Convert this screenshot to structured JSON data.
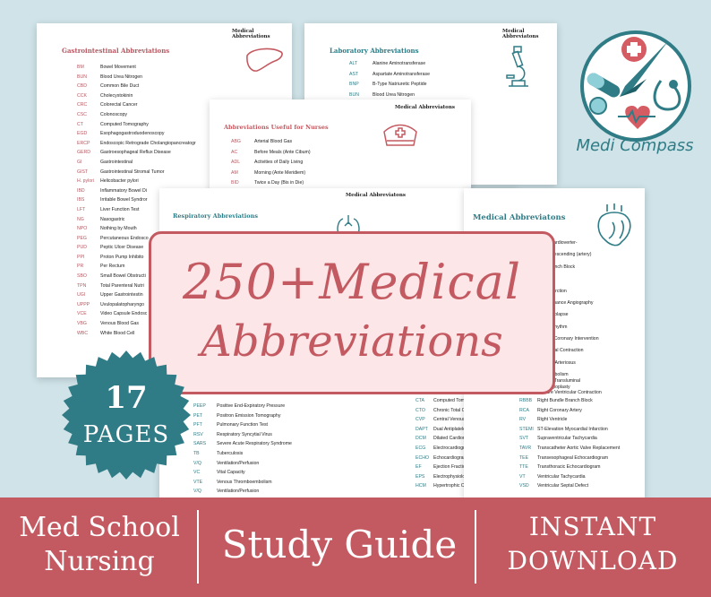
{
  "gi_sheet": {
    "header": "Medical Abbreviations",
    "title": "Gastrointestinal Abbreviations",
    "rows": [
      {
        "ab": "BM",
        "df": "Bowel Movement"
      },
      {
        "ab": "BUN",
        "df": "Blood Urea Nitrogen"
      },
      {
        "ab": "CBD",
        "df": "Common Bile Duct"
      },
      {
        "ab": "CCK",
        "df": "Cholecystokinin"
      },
      {
        "ab": "CRC",
        "df": "Colorectal Cancer"
      },
      {
        "ab": "CSC",
        "df": "Colonoscopy"
      },
      {
        "ab": "CT",
        "df": "Computed Tomography"
      },
      {
        "ab": "EGD",
        "df": "Esophagogastroduodenoscopy"
      },
      {
        "ab": "ERCP",
        "df": "Endoscopic Retrograde Cholangiopancreatogr"
      },
      {
        "ab": "GERD",
        "df": "Gastroesophageal Reflux Disease"
      },
      {
        "ab": "GI",
        "df": "Gastrointestinal"
      },
      {
        "ab": "GIST",
        "df": "Gastrointestinal Stromal Tumor"
      },
      {
        "ab": "H. pylori",
        "df": "Helicobacter pylori"
      },
      {
        "ab": "IBD",
        "df": "Inflammatory Bowel Di"
      },
      {
        "ab": "IBS",
        "df": "Irritable Bowel Syndror"
      },
      {
        "ab": "LFT",
        "df": "Liver Function Test"
      },
      {
        "ab": "NG",
        "df": "Nasogastric"
      },
      {
        "ab": "NPO",
        "df": "Nothing by Mouth"
      },
      {
        "ab": "PEG",
        "df": "Percutaneous Endosco"
      },
      {
        "ab": "PUD",
        "df": "Peptic Ulcer Disease"
      },
      {
        "ab": "PPI",
        "df": "Proton Pump Inhibito"
      },
      {
        "ab": "PR",
        "df": "Per Rectum"
      },
      {
        "ab": "SBO",
        "df": "Small Bowel Obstructi"
      },
      {
        "ab": "TPN",
        "df": "Total Parenteral Nutri"
      },
      {
        "ab": "UGI",
        "df": "Upper Gastrointestin"
      },
      {
        "ab": "UPPP",
        "df": "Uvulopalatopharyngo"
      },
      {
        "ab": "VCE",
        "df": "Video Capsule Endosc"
      },
      {
        "ab": "VBG",
        "df": "Venous Blood Gas"
      },
      {
        "ab": "WBC",
        "df": "White Blood Cell"
      }
    ]
  },
  "lab_sheet": {
    "header": "Medical Abbreviatons",
    "title": "Laboratory Abbreviations",
    "rows": [
      {
        "ab": "ALT",
        "df": "Alanine Aminotransferase"
      },
      {
        "ab": "AST",
        "df": "Aspartate Aminotransferase"
      },
      {
        "ab": "BNP",
        "df": "B-Type Natriuretic Peptide"
      },
      {
        "ab": "BUN",
        "df": "Blood Urea Nitrogen"
      }
    ]
  },
  "nurse_sheet": {
    "header": "Medical Abbreviatons",
    "title": "Abbreviations Useful for Nurses",
    "rows": [
      {
        "ab": "ABG",
        "df": "Arterial Blood Gas"
      },
      {
        "ab": "AC",
        "df": "Before Meals (Ante Cibum)"
      },
      {
        "ab": "ADL",
        "df": "Activities of Daily Living"
      },
      {
        "ab": "AM",
        "df": "Morning (Ante Meridiem)"
      },
      {
        "ab": "BID",
        "df": "Twice a Day (Bis in Die)"
      }
    ]
  },
  "resp_sheet": {
    "header": "Medical Abbreviatons",
    "title": "Respiratory Abbreviations",
    "rows": [
      {
        "ab": "PEEP",
        "df": "Positive End-Expiratory Pressure"
      },
      {
        "ab": "PET",
        "df": "Positron Emission Tomography"
      },
      {
        "ab": "PFT",
        "df": "Pulmonary Function Test"
      },
      {
        "ab": "RSV",
        "df": "Respiratory Syncytial Virus"
      },
      {
        "ab": "SARS",
        "df": "Severe Acute Respiratory Syndrome"
      },
      {
        "ab": "TB",
        "df": "Tuberculosis"
      },
      {
        "ab": "V/Q",
        "df": "Ventilation/Perfusion"
      },
      {
        "ab": "VC",
        "df": "Vital Capacity"
      },
      {
        "ab": "VTE",
        "df": "Venous Thromboembolism"
      },
      {
        "ab": "V/Q",
        "df": "Ventilation/Perfusion"
      }
    ],
    "mid_rows": [
      {
        "ab": "CTA",
        "df": "Computed Tomography Angiography"
      },
      {
        "ab": "CTO",
        "df": "Chronic Total Occlusion"
      },
      {
        "ab": "CVP",
        "df": "Central Venous Pressure"
      },
      {
        "ab": "DAPT",
        "df": "Dual Antiplatelet Therapy"
      },
      {
        "ab": "DCM",
        "df": "Dilated Cardiomyopathy"
      },
      {
        "ab": "ECG",
        "df": "Electrocardiogram"
      },
      {
        "ab": "ECHO",
        "df": "Echocardiogram"
      },
      {
        "ab": "EF",
        "df": "Ejection Fraction"
      },
      {
        "ab": "EPS",
        "df": "Electrophysiological Study"
      },
      {
        "ab": "HCM",
        "df": "Hypertrophic Cardiomyopathy"
      }
    ]
  },
  "cardio_sheet": {
    "title": "Medical Abbreviatons",
    "top_rows": [
      {
        "ab": "",
        "df": "ble Cardioverter-"
      },
      {
        "ab": "",
        "df": "tor"
      },
      {
        "ab": "",
        "df": "rior Descending (artery)"
      },
      {
        "ab": "",
        "df": ""
      },
      {
        "ab": "",
        "df": "le Branch Block"
      },
      {
        "ab": "",
        "df": ""
      },
      {
        "ab": "",
        "df": "ricle"
      },
      {
        "ab": "",
        "df": ""
      },
      {
        "ab": "",
        "df": "al Infarction"
      },
      {
        "ab": "",
        "df": ""
      },
      {
        "ab": "",
        "df": "Resonance Angiography"
      },
      {
        "ab": "",
        "df": ""
      },
      {
        "ab": "",
        "df": "lve Prolapse"
      },
      {
        "ab": "",
        "df": ""
      },
      {
        "ab": "",
        "df": "sus Rhythm"
      },
      {
        "ab": "",
        "df": ""
      },
      {
        "ab": "",
        "df": "eous Coronary Intervention"
      },
      {
        "ab": "",
        "df": ""
      },
      {
        "ab": "",
        "df": "re Atrial Contraction"
      },
      {
        "ab": "",
        "df": ""
      },
      {
        "ab": "",
        "df": "uctus Arteriosus"
      },
      {
        "ab": "",
        "df": ""
      },
      {
        "ab": "",
        "df": "ry Embolism"
      },
      {
        "ab": "",
        "df": "eous Transluminal"
      },
      {
        "ab": "",
        "df": "y Angioplasty"
      },
      {
        "ab": "",
        "df": "ature Ventricular Contraction"
      }
    ],
    "rows": [
      {
        "ab": "RBBB",
        "df": "Right Bundle Branch Block"
      },
      {
        "ab": "RCA",
        "df": "Right Coronary Artery"
      },
      {
        "ab": "RV",
        "df": "Right Ventricle"
      },
      {
        "ab": "STEMI",
        "df": "ST-Elevation Myocardial Infarction"
      },
      {
        "ab": "SVT",
        "df": "Supraventricular Tachycardia"
      },
      {
        "ab": "TAVR",
        "df": "Transcatheter Aortic Valve Replacement"
      },
      {
        "ab": "TEE",
        "df": "Transesophageal Echocardiogram"
      },
      {
        "ab": "TTE",
        "df": "Transthoracic Echocardiogram"
      },
      {
        "ab": "VT",
        "df": "Ventricular Tachycardia"
      },
      {
        "ab": "VSD",
        "df": "Ventricular Septal Defect"
      }
    ]
  },
  "banner": {
    "line1": "250+Medical",
    "line2": "Abbreviations"
  },
  "badge": {
    "number": "17",
    "label": "PAGES"
  },
  "logo": {
    "text": "Medi Compass"
  },
  "footer": {
    "left_line1": "Med School",
    "left_line2": "Nursing",
    "center": "Study Guide",
    "right_line1": "INSTANT",
    "right_line2": "DOWNLOAD"
  },
  "colors": {
    "accent_red": "#c45a61",
    "accent_teal": "#2f7c86",
    "background": "#cfe3e8"
  }
}
